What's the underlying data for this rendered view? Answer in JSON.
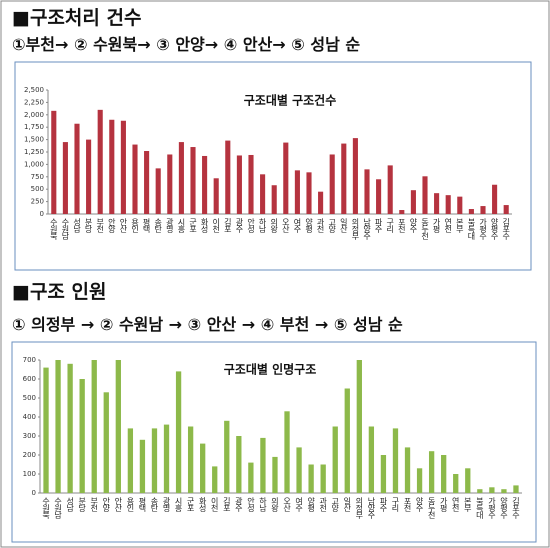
{
  "chart_data": [
    {
      "type": "bar",
      "heading": "■구조처리 건수",
      "ranking": "①부천→ ② 수원북→ ③ 안양→ ④ 안산→ ⑤ 성남 순",
      "title": "구조대별 구조건수",
      "color": "#b5333f",
      "categories": [
        "수원북",
        "수원남",
        "성남",
        "분당",
        "부천",
        "안양",
        "안산",
        "용인",
        "평택",
        "송탄",
        "광명",
        "시흥",
        "군포",
        "화성",
        "이천",
        "김포",
        "광주",
        "안성",
        "하남",
        "의왕",
        "오산",
        "여주",
        "양평",
        "과천",
        "고양",
        "일산",
        "의정부",
        "남양주",
        "파주",
        "구리",
        "포천",
        "양주",
        "동두천",
        "가평",
        "연천",
        "본부",
        "북특대",
        "가평수",
        "양평수",
        "김포수"
      ],
      "values": [
        2080,
        1450,
        1820,
        1500,
        2100,
        1900,
        1880,
        1400,
        1270,
        920,
        1200,
        1450,
        1350,
        1170,
        720,
        1480,
        1180,
        1190,
        800,
        580,
        1440,
        880,
        840,
        450,
        1200,
        1420,
        1530,
        900,
        700,
        980,
        80,
        480,
        760,
        420,
        380,
        350,
        100,
        160,
        590,
        180
      ],
      "ylim": [
        0,
        2500
      ],
      "yticks": [
        0,
        250,
        500,
        750,
        {
          "value": 1000,
          "label": "1,000"
        },
        {
          "value": 1250,
          "label": "1,250"
        },
        {
          "value": 1500,
          "label": "1,500"
        },
        {
          "value": 1750,
          "label": "1,750"
        },
        {
          "value": 2000,
          "label": "2,000"
        },
        {
          "value": 2250,
          "label": "2,250"
        },
        {
          "value": 2500,
          "label": "2,500"
        }
      ]
    },
    {
      "type": "bar",
      "heading": "■구조 인원",
      "ranking": "① 의정부 → ② 수원남 → ③ 안산 → ④ 부천 → ⑤ 성남 순",
      "title": "구조대별 인명구조",
      "color": "#8db94a",
      "categories": [
        "수원북",
        "수원남",
        "성남",
        "분당",
        "부천",
        "안양",
        "안산",
        "용인",
        "평택",
        "송탄",
        "광명",
        "시흥",
        "군포",
        "화성",
        "이천",
        "김포",
        "광주",
        "안성",
        "하남",
        "의왕",
        "오산",
        "여주",
        "양평",
        "과천",
        "고양",
        "일산",
        "의정부",
        "남양주",
        "파주",
        "구리",
        "포천",
        "양주",
        "동두천",
        "가평",
        "연천",
        "본부",
        "북특대",
        "가평수",
        "양평수",
        "김포수"
      ],
      "values": [
        660,
        700,
        680,
        600,
        700,
        530,
        700,
        340,
        280,
        340,
        360,
        640,
        350,
        260,
        140,
        380,
        300,
        160,
        290,
        190,
        430,
        240,
        150,
        150,
        350,
        550,
        700,
        350,
        200,
        340,
        240,
        130,
        220,
        200,
        100,
        130,
        20,
        30,
        20,
        40
      ],
      "ylim": [
        0,
        700
      ],
      "yticks": [
        0,
        100,
        200,
        300,
        400,
        500,
        600,
        700
      ]
    }
  ]
}
